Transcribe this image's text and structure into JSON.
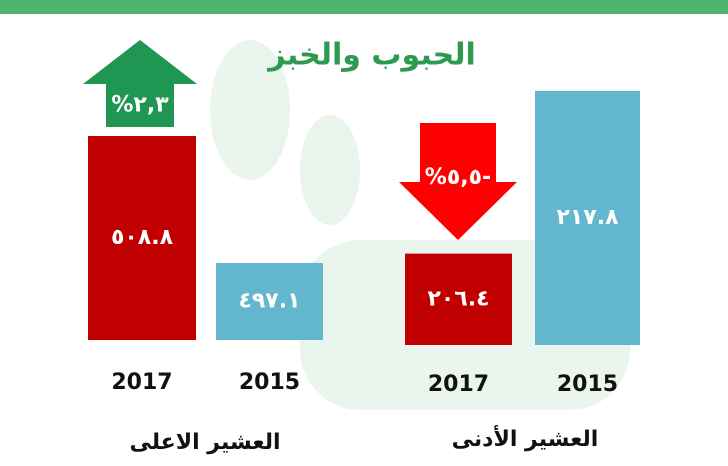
{
  "title": "الحبوب والخبز",
  "chart_data": [
    {
      "type": "bar",
      "xlabel": "العشير الاعلى",
      "categories": [
        "2017",
        "2015"
      ],
      "values": [
        508.8,
        497.1
      ],
      "value_labels": [
        "٥٠٨.٨",
        "٤٩٧.١"
      ],
      "colors": [
        "#c00000",
        "#62b6cd"
      ],
      "ylim": [
        490,
        510
      ],
      "annotation": {
        "text": "%٢,٣",
        "direction": "up",
        "color": "#1f9651"
      }
    },
    {
      "type": "bar",
      "xlabel": "العشير الأدنى",
      "categories": [
        "2017",
        "2015"
      ],
      "values": [
        206.4,
        217.8
      ],
      "value_labels": [
        "٢٠٦.٤",
        "٢١٧.٨"
      ],
      "colors": [
        "#c00000",
        "#62b6cd"
      ],
      "ylim": [
        200,
        218
      ],
      "annotation": {
        "text": "%٥,٥-",
        "direction": "down",
        "color": "#ff0000"
      }
    }
  ]
}
